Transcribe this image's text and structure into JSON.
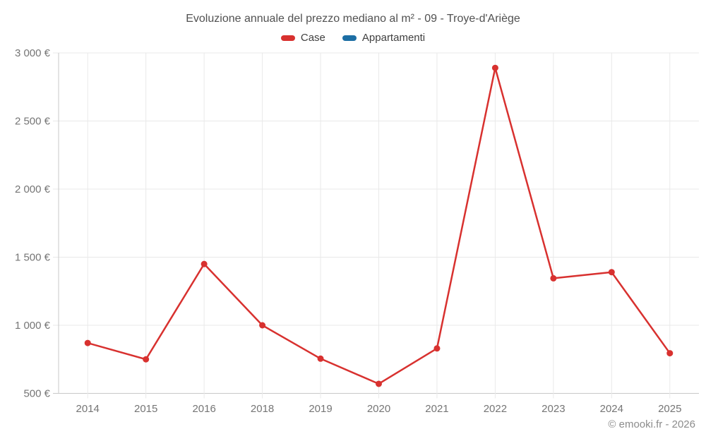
{
  "chart_data": {
    "type": "line",
    "title": "Evoluzione annuale del prezzo mediano al m² - 09 - Troye-d'Ariège",
    "categories": [
      "2014",
      "2015",
      "2016",
      "2018",
      "2019",
      "2020",
      "2021",
      "2022",
      "2023",
      "2024",
      "2025"
    ],
    "series": [
      {
        "name": "Case",
        "color": "#d8312f",
        "values": [
          870,
          750,
          1450,
          1000,
          755,
          570,
          830,
          2890,
          1345,
          1390,
          795
        ]
      },
      {
        "name": "Appartamenti",
        "color": "#1c6ea4",
        "values": []
      }
    ],
    "ylim": [
      500,
      3000
    ],
    "ytick_step": 500,
    "ytick_format": "{value} €",
    "grid": true,
    "legend_position": "top",
    "marker": "circle"
  },
  "footer": {
    "credit": "© emooki.fr - 2026"
  },
  "colors": {
    "background": "#ffffff",
    "grid": "#e9e9e9",
    "axis": "#c9c9c9",
    "tick_label": "#757575",
    "title_text": "#515151",
    "legend_text": "#3f3f3f",
    "footer_text": "#8c8c8c"
  }
}
